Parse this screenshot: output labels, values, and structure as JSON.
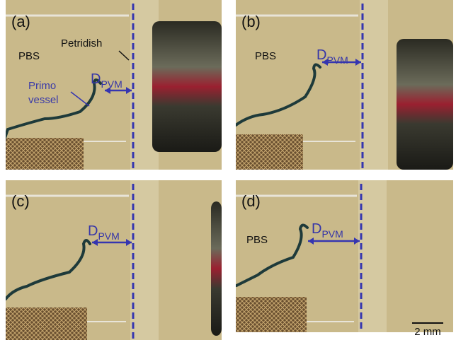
{
  "panels": [
    {
      "label": "(a)",
      "annotations": [
        "PBS",
        "Petridish",
        "Primo",
        "vessel"
      ],
      "distance": {
        "main": "D",
        "sub": "PVM"
      }
    },
    {
      "label": "(b)",
      "annotations": [
        "PBS"
      ],
      "distance": {
        "main": "D",
        "sub": "PVM"
      }
    },
    {
      "label": "(c)",
      "annotations": [],
      "distance": {
        "main": "D",
        "sub": "PVM"
      }
    },
    {
      "label": "(d)",
      "annotations": [
        "PBS"
      ],
      "distance": {
        "main": "D",
        "sub": "PVM"
      }
    }
  ],
  "scale_bar": "2 mm"
}
